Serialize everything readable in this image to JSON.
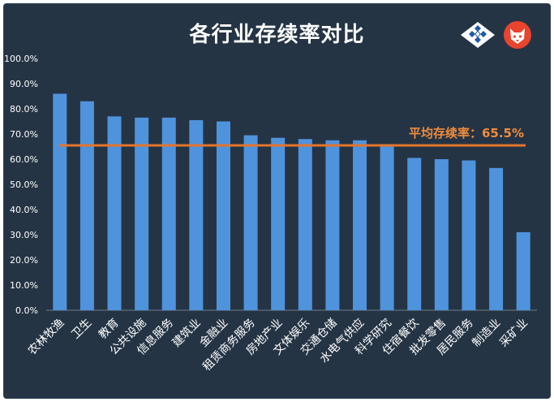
{
  "chart_data": {
    "type": "bar",
    "title": "各行业存续率对比",
    "categories": [
      "农林牧渔",
      "卫生",
      "教育",
      "公共设施",
      "信息服务",
      "建筑业",
      "金融业",
      "租赁商务服务",
      "房地产业",
      "文体娱乐",
      "交通仓储",
      "水电气供应",
      "科学研究",
      "住宿餐饮",
      "批发零售",
      "居民服务",
      "制造业",
      "采矿业"
    ],
    "values": [
      86,
      83,
      77,
      76.5,
      76.5,
      75.5,
      75,
      69.5,
      68.5,
      68,
      67.5,
      67.5,
      66,
      60.5,
      60,
      59.5,
      56.5,
      31
    ],
    "ylim": [
      0,
      100
    ],
    "yticks": [
      "0.0%",
      "10.0%",
      "20.0%",
      "30.0%",
      "40.0%",
      "50.0%",
      "60.0%",
      "70.0%",
      "80.0%",
      "90.0%",
      "100.0%"
    ],
    "reference_line": {
      "label": "平均存续率：65.5%",
      "value": 65.5,
      "color": "#e4742c"
    },
    "bar_color": "#4f93dd",
    "background": "#253444",
    "grid": false
  },
  "logo": {
    "left": "diamond-grid-logo",
    "right": "fox-mascot-logo"
  }
}
